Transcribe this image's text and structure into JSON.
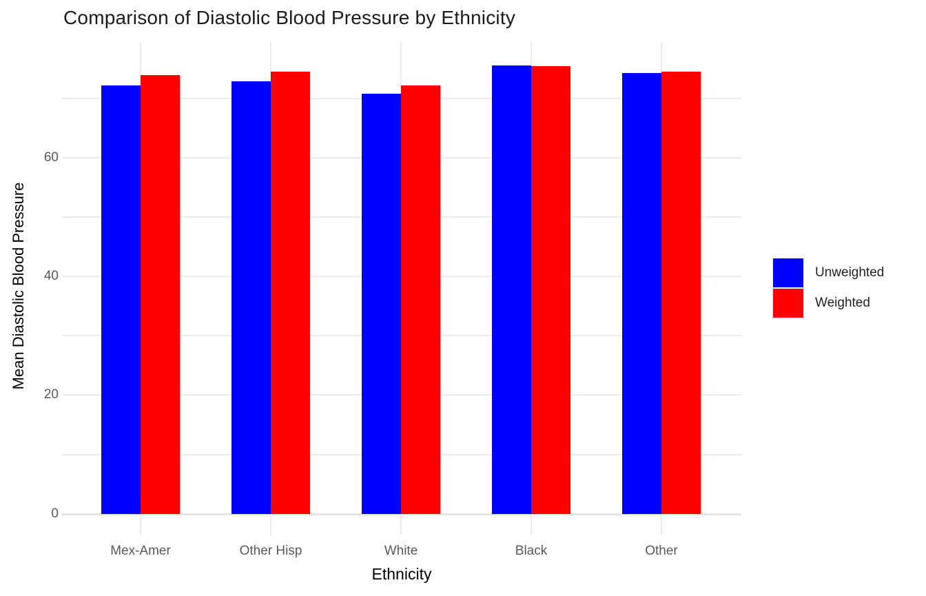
{
  "title": "Comparison of Diastolic Blood Pressure by Ethnicity",
  "chart_data": {
    "type": "bar",
    "title": "Comparison of Diastolic Blood Pressure by Ethnicity",
    "xlabel": "Ethnicity",
    "ylabel": "Mean Diastolic Blood Pressure",
    "categories": [
      "Mex-Amer",
      "Other Hisp",
      "White",
      "Black",
      "Other"
    ],
    "series": [
      {
        "name": "Unweighted",
        "color": "#0000ff",
        "values": [
          72.2,
          72.8,
          70.7,
          75.5,
          74.2
        ]
      },
      {
        "name": "Weighted",
        "color": "#ff0000",
        "values": [
          73.9,
          74.5,
          72.2,
          75.4,
          74.5
        ]
      }
    ],
    "ylim": [
      -3.6,
      79.5
    ],
    "yticks": [
      0,
      20,
      40,
      60
    ],
    "gridline_values": [
      0,
      10,
      20,
      30,
      40,
      50,
      60,
      70
    ],
    "grid": "on",
    "legend_position": "right",
    "background_color": "#ffffff",
    "gridline_color": "#ebebeb",
    "tick_label_color": "#595959"
  }
}
